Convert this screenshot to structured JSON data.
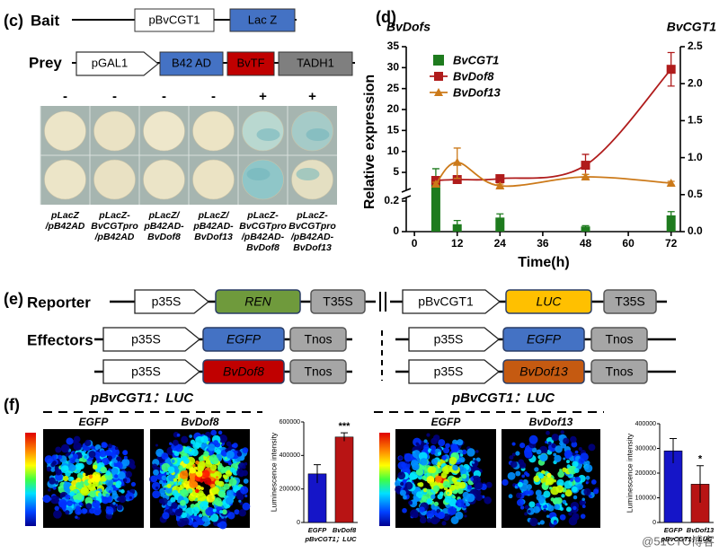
{
  "panel_c": {
    "label": "(c)",
    "bait": {
      "label": "Bait",
      "parts": [
        "pBvCGT1",
        "Lac Z"
      ]
    },
    "prey": {
      "label": "Prey",
      "parts": [
        "pGAL1",
        "B42 AD",
        "BvTF",
        "TADH1"
      ]
    },
    "signs": [
      "-",
      "-",
      "-",
      "-",
      "+",
      "+"
    ],
    "strains": [
      [
        "pLacZ",
        "/pB42AD"
      ],
      [
        "pLacZ-",
        "BvCGTpro",
        "/pB42AD"
      ],
      [
        "pLacZ/",
        "pB42AD-",
        "BvDof8"
      ],
      [
        "pLacZ/",
        "pB42AD-",
        "BvDof13"
      ],
      [
        "pLacZ-",
        "BvCGTpro",
        "/pB42AD-",
        "BvDof8"
      ],
      [
        "pLacZ-",
        "BvCGTpro",
        "/pB42AD-",
        "BvDof13"
      ]
    ]
  },
  "panel_d": {
    "label": "(d)"
  },
  "panel_e": {
    "label": "(e)",
    "reporter": {
      "label": "Reporter",
      "left": [
        "p35S",
        "REN",
        "T35S"
      ],
      "right": [
        "pBvCGT1",
        "LUC",
        "T35S"
      ]
    },
    "effectors": {
      "label": "Effectors",
      "rows": [
        {
          "left": [
            "p35S",
            "EGFP",
            "Tnos"
          ],
          "right": [
            "p35S",
            "EGFP",
            "Tnos"
          ]
        },
        {
          "left": [
            "p35S",
            "BvDof8",
            "Tnos"
          ],
          "right": [
            "p35S",
            "BvDof13",
            "Tnos"
          ]
        }
      ]
    }
  },
  "panel_f": {
    "label": "(f)",
    "groups": [
      {
        "title": "pBvCGT1：LUC",
        "images": [
          "EGFP",
          "BvDof8"
        ]
      },
      {
        "title": "pBvCGT1：LUC",
        "images": [
          "EGFP",
          "BvDof13"
        ]
      }
    ]
  },
  "watermark": "@51CTO博客",
  "chart_data": [
    {
      "type": "line",
      "y_title": "BvDofs",
      "y2_title": "BvCGT1",
      "xlabel": "Time(h)",
      "ylabel": "Relative expression",
      "xlim": [
        -2.3,
        74.6
      ],
      "xticks": [
        0,
        12,
        24,
        36,
        48,
        60,
        72
      ],
      "ylim": [
        0,
        35
      ],
      "yticks": [
        0,
        0.2,
        5,
        10,
        15,
        20,
        25,
        30,
        35
      ],
      "axis_break": [
        0.2,
        5
      ],
      "y2lim": [
        0,
        2.5
      ],
      "y2ticks": [
        {
          "value": 0,
          "label": "0.0"
        },
        0.5,
        {
          "value": 1,
          "label": "1.0"
        },
        1.5,
        {
          "value": 2,
          "label": "2.0"
        },
        2.5
      ],
      "legend": "upper left",
      "series": [
        {
          "name": "BvCGT1",
          "type": "bar",
          "axis": "y2",
          "color": "#1e7b1e",
          "x": [
            6,
            12,
            24,
            48,
            72
          ],
          "values": [
            0.7,
            0.1,
            0.19,
            0.07,
            0.22
          ],
          "errors": [
            0.15,
            0.05,
            0.05,
            0.01,
            0.05
          ]
        },
        {
          "name": "BvDof8",
          "type": "line",
          "marker": "square",
          "color": "#b01c1c",
          "x": [
            6,
            12,
            24,
            48,
            72
          ],
          "values": [
            3.65,
            3.8,
            3.95,
            6.7,
            29.6
          ],
          "errors": [
            0.5,
            0.4,
            0.4,
            2.6,
            4
          ]
        },
        {
          "name": "BvDof13",
          "type": "line",
          "marker": "triangle",
          "color": "#cc7a1a",
          "x": [
            6,
            12,
            24,
            48,
            72
          ],
          "values": [
            3.05,
            7.4,
            2.75,
            4.25,
            3.2
          ],
          "errors": [
            0.3,
            3.4,
            0.3,
            0.4,
            0.3
          ]
        }
      ]
    },
    {
      "type": "bar",
      "ylabel": "Luminescence intensity",
      "categories": [
        "EGFP",
        "BvDof8"
      ],
      "x_sublabel": "pBvCGT1；LUC",
      "values": [
        290000,
        510000
      ],
      "errors": [
        55000,
        25000
      ],
      "value_annotations": [
        null,
        "***"
      ],
      "colors": [
        "#1515c8",
        "#b81414"
      ],
      "ylim": [
        0,
        600000
      ],
      "yticks": [
        0,
        200000,
        400000,
        600000
      ]
    },
    {
      "type": "bar",
      "ylabel": "Luminescence intensity",
      "categories": [
        "EGFP",
        "BvDof13"
      ],
      "x_sublabel": "pBvCGT1；LUC",
      "values": [
        290000,
        155000
      ],
      "errors": [
        50000,
        75000
      ],
      "value_annotations": [
        null,
        "*"
      ],
      "colors": [
        "#1515c8",
        "#b81414"
      ],
      "ylim": [
        0,
        400000
      ],
      "yticks": [
        0,
        100000,
        200000,
        300000,
        400000
      ]
    }
  ]
}
